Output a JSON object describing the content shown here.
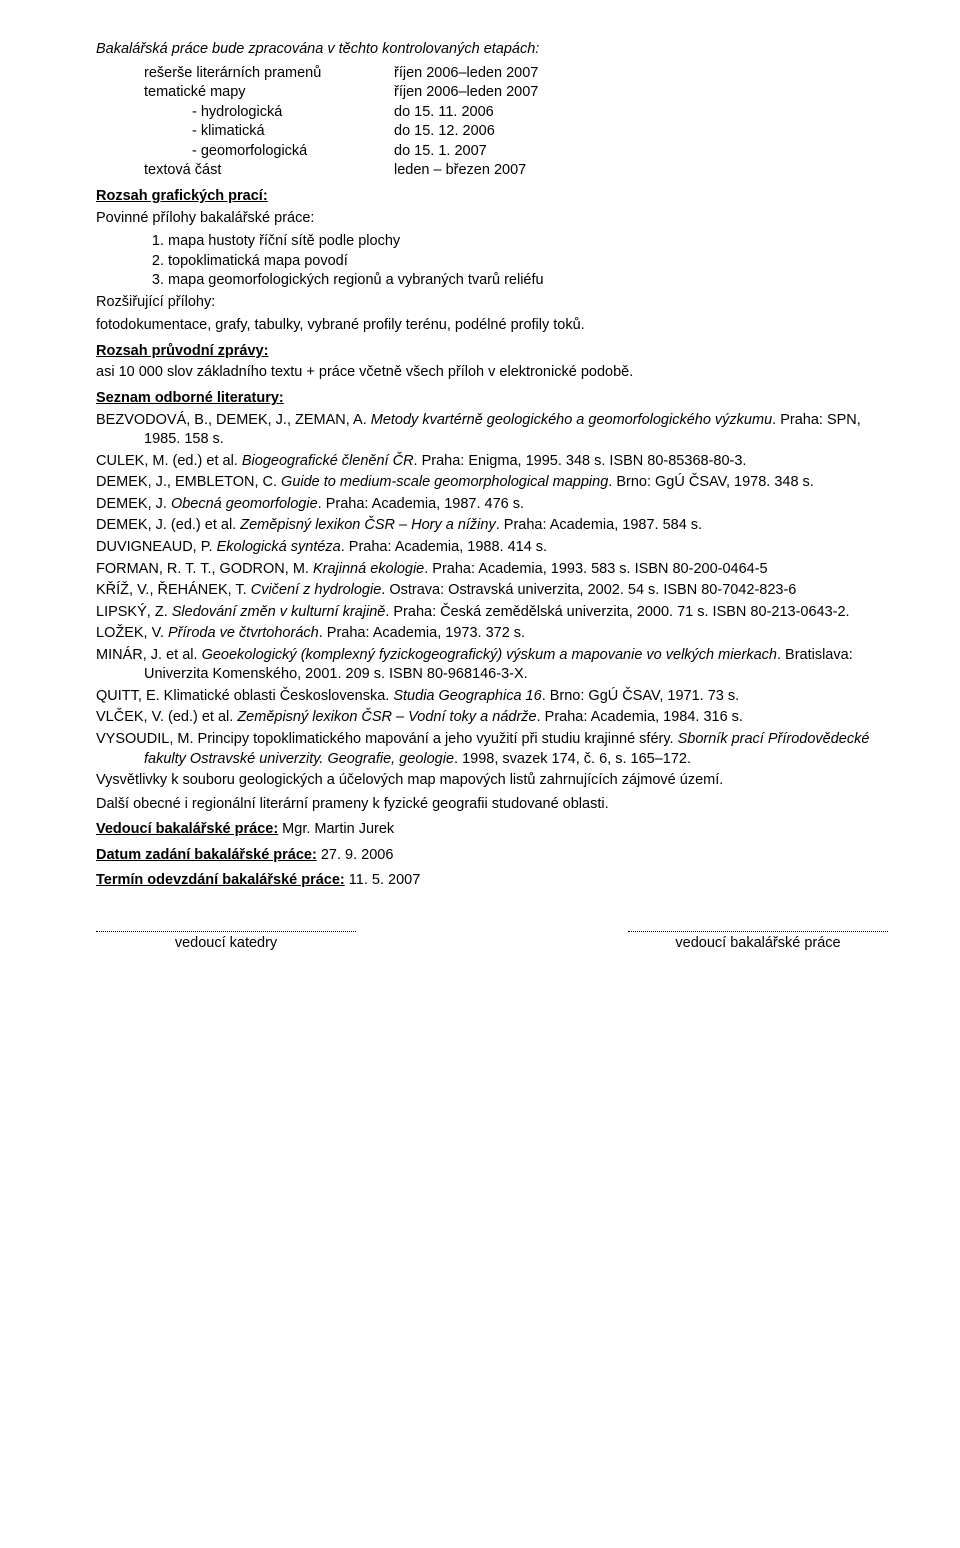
{
  "intro": "Bakalářská práce bude zpracována v těchto kontrolovaných etapách:",
  "schedule": [
    {
      "c1": "rešerše literárních pramenů",
      "c2": "říjen 2006–leden 2007"
    },
    {
      "c1": "tematické mapy",
      "c2": "říjen 2006–leden 2007"
    },
    {
      "c1": "- hydrologická",
      "c2": "do 15. 11. 2006",
      "sub": true
    },
    {
      "c1": "- klimatická",
      "c2": "do 15. 12. 2006",
      "sub": true
    },
    {
      "c1": "- geomorfologická",
      "c2": "do 15. 1. 2007",
      "sub": true
    },
    {
      "c1": "textová část",
      "c2": "leden – březen 2007"
    }
  ],
  "rozsah_graf_head": "Rozsah grafických prací:",
  "povinne_line": "Povinné přílohy bakalářské práce:",
  "povinne_items": [
    "mapa hustoty říční sítě podle plochy",
    "topoklimatická mapa povodí",
    "mapa geomorfologických regionů a vybraných tvarů reliéfu"
  ],
  "rozsir_line": "Rozšiřující přílohy:",
  "rozsir_text": "fotodokumentace, grafy, tabulky, vybrané profily terénu, podélné profily toků.",
  "pruvodni_head": "Rozsah průvodní zprávy:",
  "pruvodni_text": "asi 10 000 slov základního textu + práce včetně všech příloh v elektronické podobě.",
  "lit_head": "Seznam odborné literatury:",
  "refs": [
    {
      "r": "BEZVODOVÁ, B., DEMEK, J., ZEMAN, A. ",
      "i": "Metody kvartérně geologického a geomorfologického výzkumu",
      "t": ". Praha: SPN, 1985. 158 s."
    },
    {
      "r": "CULEK, M. (ed.) et al. ",
      "i": "Biogeografické členění ČR",
      "t": ". Praha: Enigma, 1995. 348 s. ISBN 80-85368-80-3."
    },
    {
      "r": "DEMEK, J., EMBLETON, C. ",
      "i": "Guide to medium-scale geomorphological mapping",
      "t": ". Brno: GgÚ ČSAV, 1978. 348 s."
    },
    {
      "r": "DEMEK, J. ",
      "i": "Obecná geomorfologie",
      "t": ". Praha: Academia, 1987. 476 s."
    },
    {
      "r": "DEMEK, J. (ed.) et al. ",
      "i": "Zeměpisný lexikon ČSR – Hory a nížiny",
      "t": ". Praha: Academia, 1987. 584 s."
    },
    {
      "r": "DUVIGNEAUD, P. ",
      "i": "Ekologická syntéza",
      "t": ". Praha: Academia, 1988. 414 s."
    },
    {
      "r": "FORMAN, R. T. T., GODRON, M. ",
      "i": "Krajinná ekologie",
      "t": ". Praha: Academia, 1993. 583 s. ISBN 80-200-0464-5"
    },
    {
      "r": "KŘÍŽ, V., ŘEHÁNEK, T. ",
      "i": "Cvičení z hydrologie",
      "t": ". Ostrava: Ostravská univerzita, 2002. 54 s. ISBN 80-7042-823-6"
    },
    {
      "r": "LIPSKÝ, Z. ",
      "i": "Sledování změn v kulturní krajině",
      "t": ". Praha: Česká zemědělská univerzita, 2000. 71 s. ISBN 80-213-0643-2."
    },
    {
      "r": "LOŽEK, V. ",
      "i": "Příroda ve čtvrtohorách",
      "t": ". Praha: Academia, 1973. 372 s."
    },
    {
      "r": "MINÁR, J. et al. ",
      "i": "Geoekologický (komplexný fyzickogeografický) výskum a mapovanie vo velkých mierkach",
      "t": ". Bratislava: Univerzita Komenského, 2001. 209 s. ISBN 80-968146-3-X."
    },
    {
      "r": "QUITT, E. Klimatické oblasti Československa. ",
      "i": "Studia Geographica 16",
      "t": ". Brno: GgÚ ČSAV, 1971. 73 s."
    },
    {
      "r": "VLČEK, V. (ed.) et al. ",
      "i": "Zeměpisný lexikon ČSR – Vodní toky a nádrže",
      "t": ". Praha: Academia, 1984. 316 s."
    },
    {
      "r": "VYSOUDIL, M. Principy topoklimatického mapování a jeho využití při studiu krajinné sféry. ",
      "i": "Sborník prací Přírodovědecké fakulty Ostravské univerzity. Geografie, geologie",
      "t": ". 1998, svazek 174, č. 6, s. 165–172."
    }
  ],
  "tail1": "Vysvětlivky k souboru geologických a účelových map mapových listů zahrnujících zájmové území.",
  "tail2": "Další obecné i regionální literární prameny k fyzické geografii studované oblasti.",
  "vedouci_head": "Vedoucí bakalářské práce:",
  "vedouci_name": " Mgr. Martin Jurek",
  "zadani_head": "Datum zadání bakalářské práce:",
  "zadani_date": " 27. 9. 2006",
  "odevz_head": "Termín odevzdání bakalářské práce:",
  "odevz_date": " 11. 5. 2007",
  "sig_left": "vedoucí katedry",
  "sig_right": "vedoucí bakalářské práce"
}
